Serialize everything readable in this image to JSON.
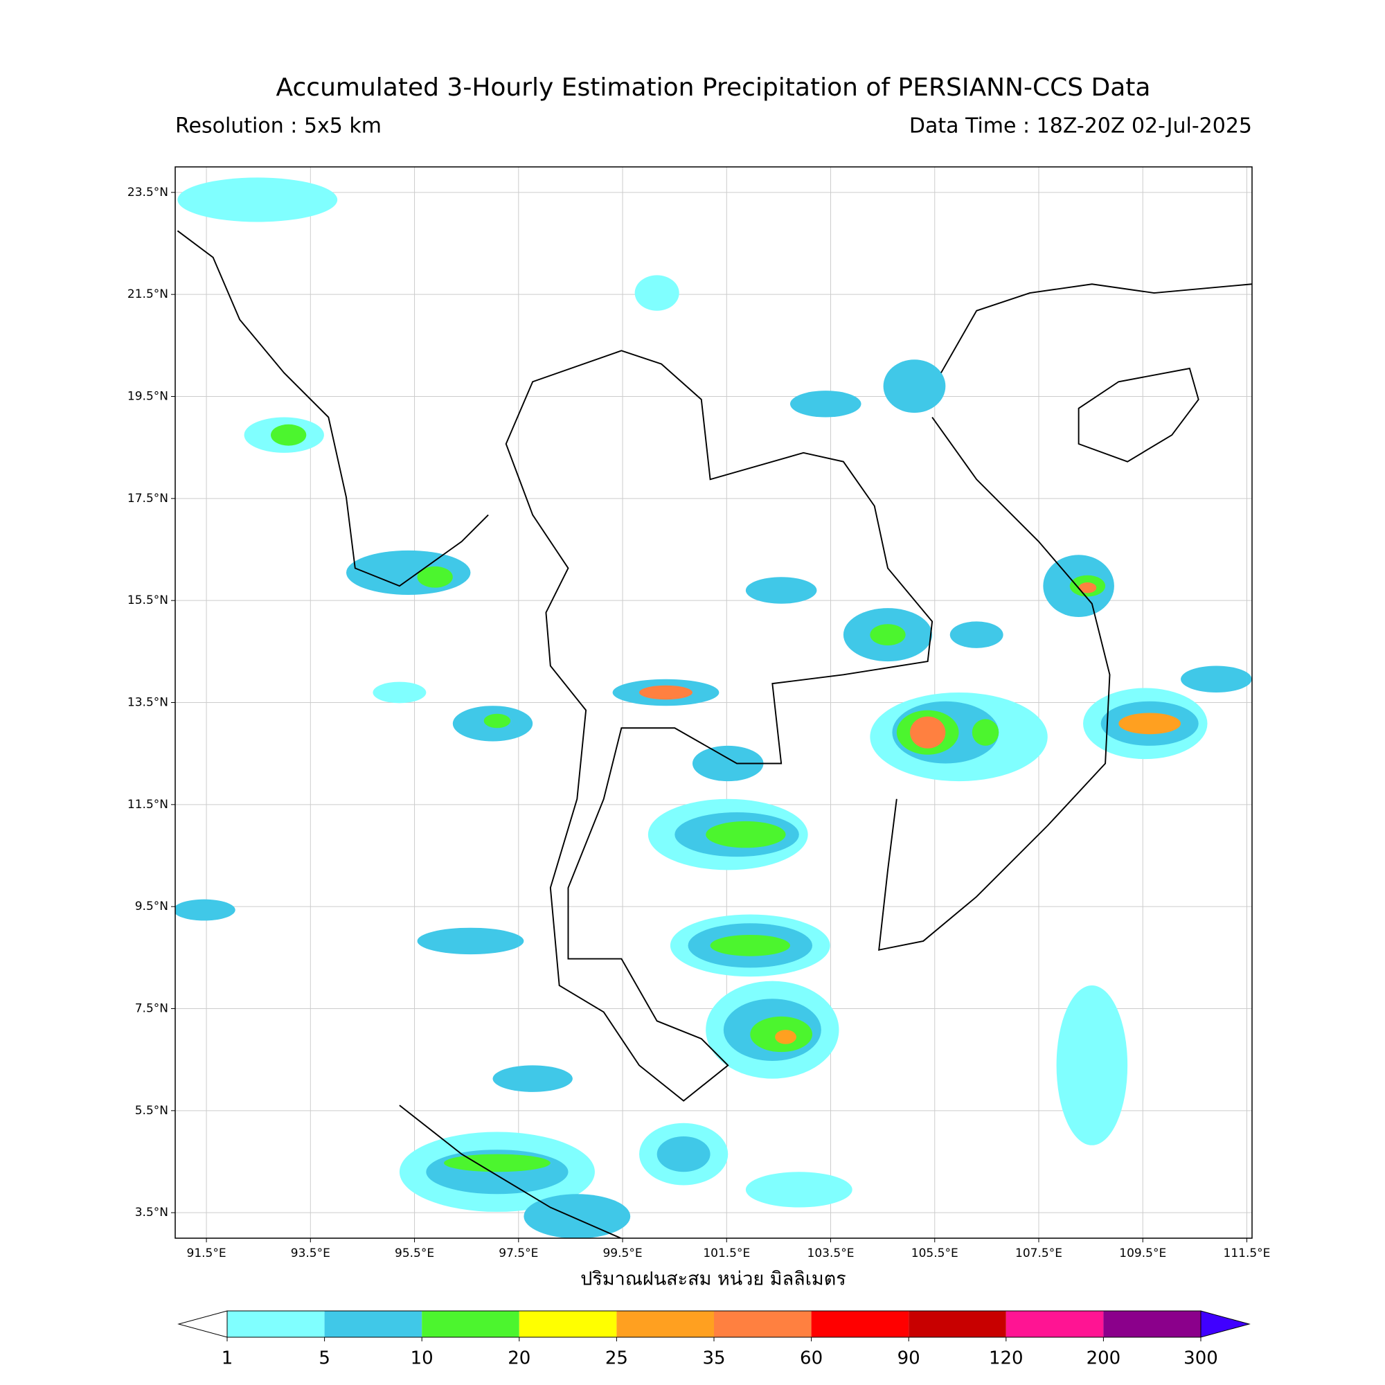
{
  "chart_data": {
    "type": "map",
    "title": "Accumulated 3-Hourly Estimation Precipitation of PERSIANN-CCS Data",
    "subtitle_left": "Resolution : 5x5 km",
    "subtitle_right": "Data Time : 18Z-20Z 02-Jul-2025",
    "xlabel": "ปริมาณฝนสะสม หน่วย มิลลิเมตร",
    "xlim": [
      90.9,
      111.6
    ],
    "ylim": [
      3.0,
      24.0
    ],
    "xticks": [
      {
        "value": 91.5,
        "label": "91.5°E"
      },
      {
        "value": 93.5,
        "label": "93.5°E"
      },
      {
        "value": 95.5,
        "label": "95.5°E"
      },
      {
        "value": 97.5,
        "label": "97.5°E"
      },
      {
        "value": 99.5,
        "label": "99.5°E"
      },
      {
        "value": 101.5,
        "label": "101.5°E"
      },
      {
        "value": 103.5,
        "label": "103.5°E"
      },
      {
        "value": 105.5,
        "label": "105.5°E"
      },
      {
        "value": 107.5,
        "label": "107.5°E"
      },
      {
        "value": 109.5,
        "label": "109.5°E"
      },
      {
        "value": 111.5,
        "label": "111.5°E"
      }
    ],
    "yticks": [
      {
        "value": 3.5,
        "label": "3.5°N"
      },
      {
        "value": 5.5,
        "label": "5.5°N"
      },
      {
        "value": 7.5,
        "label": "7.5°N"
      },
      {
        "value": 9.5,
        "label": "9.5°N"
      },
      {
        "value": 11.5,
        "label": "11.5°N"
      },
      {
        "value": 13.5,
        "label": "13.5°N"
      },
      {
        "value": 15.5,
        "label": "15.5°N"
      },
      {
        "value": 17.5,
        "label": "17.5°N"
      },
      {
        "value": 19.5,
        "label": "19.5°N"
      },
      {
        "value": 21.5,
        "label": "21.5°N"
      },
      {
        "value": 23.5,
        "label": "23.5°N"
      }
    ],
    "grid": true,
    "colorbar": {
      "levels": [
        1,
        5,
        10,
        20,
        25,
        35,
        60,
        90,
        120,
        200,
        300
      ],
      "colors": [
        "#80ffff",
        "#40c8e8",
        "#4cf52e",
        "#ffff00",
        "#ffa020",
        "#ff8040",
        "#ff0000",
        "#c80000",
        "#ff1493",
        "#8b008b"
      ],
      "under_color": "#ffffff",
      "over_color": "#4000ff"
    }
  }
}
